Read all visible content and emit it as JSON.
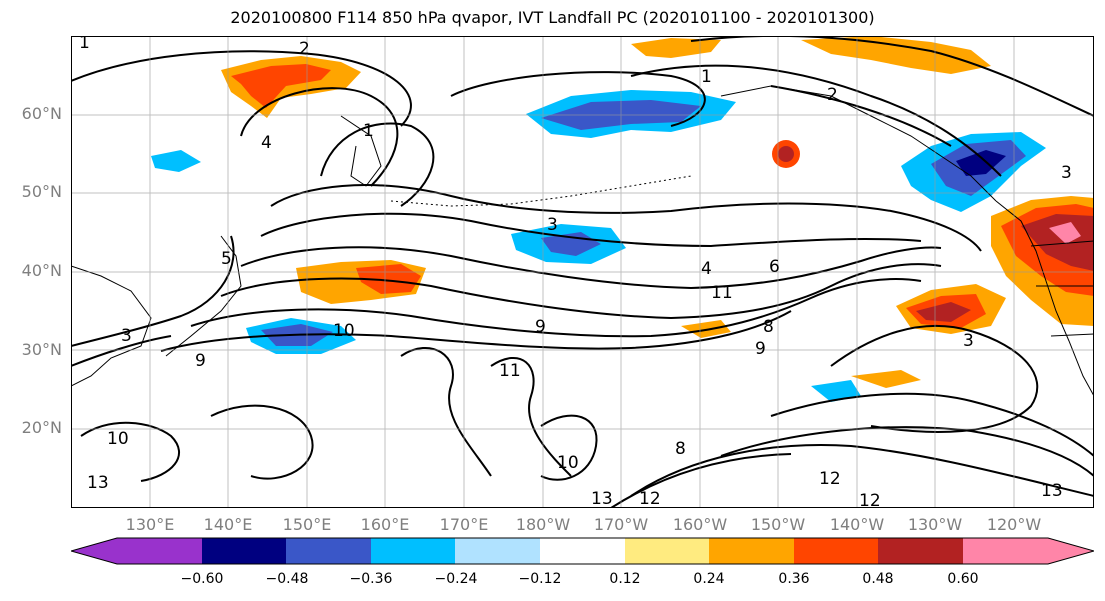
{
  "title": "2020100800 F114 850 hPa qvapor, IVT Landfall PC (2020101100 - 2020101300)",
  "lat_labels": [
    "60°N",
    "50°N",
    "40°N",
    "30°N",
    "20°N"
  ],
  "lon_labels": [
    "130°E",
    "140°E",
    "150°E",
    "160°E",
    "170°E",
    "180°W",
    "170°W",
    "160°W",
    "150°W",
    "140°W",
    "130°W",
    "120°W"
  ],
  "contour_labels": [
    "1",
    "2",
    "4",
    "1",
    "2",
    "1",
    "3",
    "4",
    "6",
    "9",
    "10",
    "11",
    "9",
    "8",
    "9",
    "11",
    "10",
    "12",
    "12",
    "13",
    "12",
    "13",
    "10",
    "3",
    "13",
    "3",
    "5",
    "8",
    "3"
  ],
  "colorbar": {
    "colors": [
      "#9932cc",
      "#000080",
      "#3a57c8",
      "#00bfff",
      "#b0e2ff",
      "#ffffff",
      "#ffeb80",
      "#ffa500",
      "#ff4500",
      "#b22222",
      "#ff85a8"
    ],
    "tick_labels": [
      "−0.60",
      "−0.48",
      "−0.36",
      "−0.24",
      "−0.12",
      "0.12",
      "0.24",
      "0.36",
      "0.48",
      "0.60"
    ]
  }
}
